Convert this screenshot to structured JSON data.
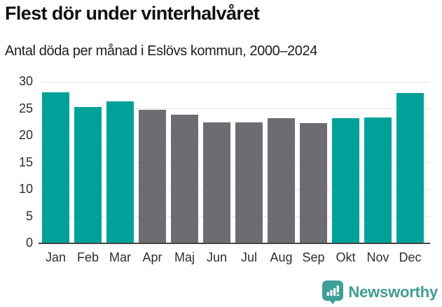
{
  "header": {
    "title": "Flest dör under vinterhalvåret",
    "subtitle": "Antal döda per månad i Eslövs kommun, 2000–2024"
  },
  "chart_data": {
    "type": "bar",
    "title": "Flest dör under vinterhalvåret",
    "subtitle": "Antal döda per månad i Eslövs kommun, 2000–2024",
    "categories": [
      "Jan",
      "Feb",
      "Mar",
      "Apr",
      "Maj",
      "Jun",
      "Jul",
      "Aug",
      "Sep",
      "Okt",
      "Nov",
      "Dec"
    ],
    "values": [
      28.1,
      25.3,
      26.4,
      24.8,
      23.9,
      22.5,
      22.5,
      23.2,
      22.4,
      23.2,
      23.4,
      27.9
    ],
    "bar_color_keys": [
      "winter",
      "winter",
      "winter",
      "summer",
      "summer",
      "summer",
      "summer",
      "summer",
      "summer",
      "winter",
      "winter",
      "winter"
    ],
    "colors": {
      "winter": "#00a199",
      "summer": "#6e6c73"
    },
    "xlabel": "",
    "ylabel": "",
    "ylim": [
      0,
      30
    ],
    "yticks": [
      0,
      5,
      10,
      15,
      20,
      25,
      30
    ],
    "grid": true,
    "legend": "none",
    "gridline_color": "#e4e4e4",
    "baseline_color": "#454545"
  },
  "footer": {
    "brand": "Newsworthy",
    "brand_color": "#3f9c94",
    "logo_color": "#3f9e96"
  }
}
